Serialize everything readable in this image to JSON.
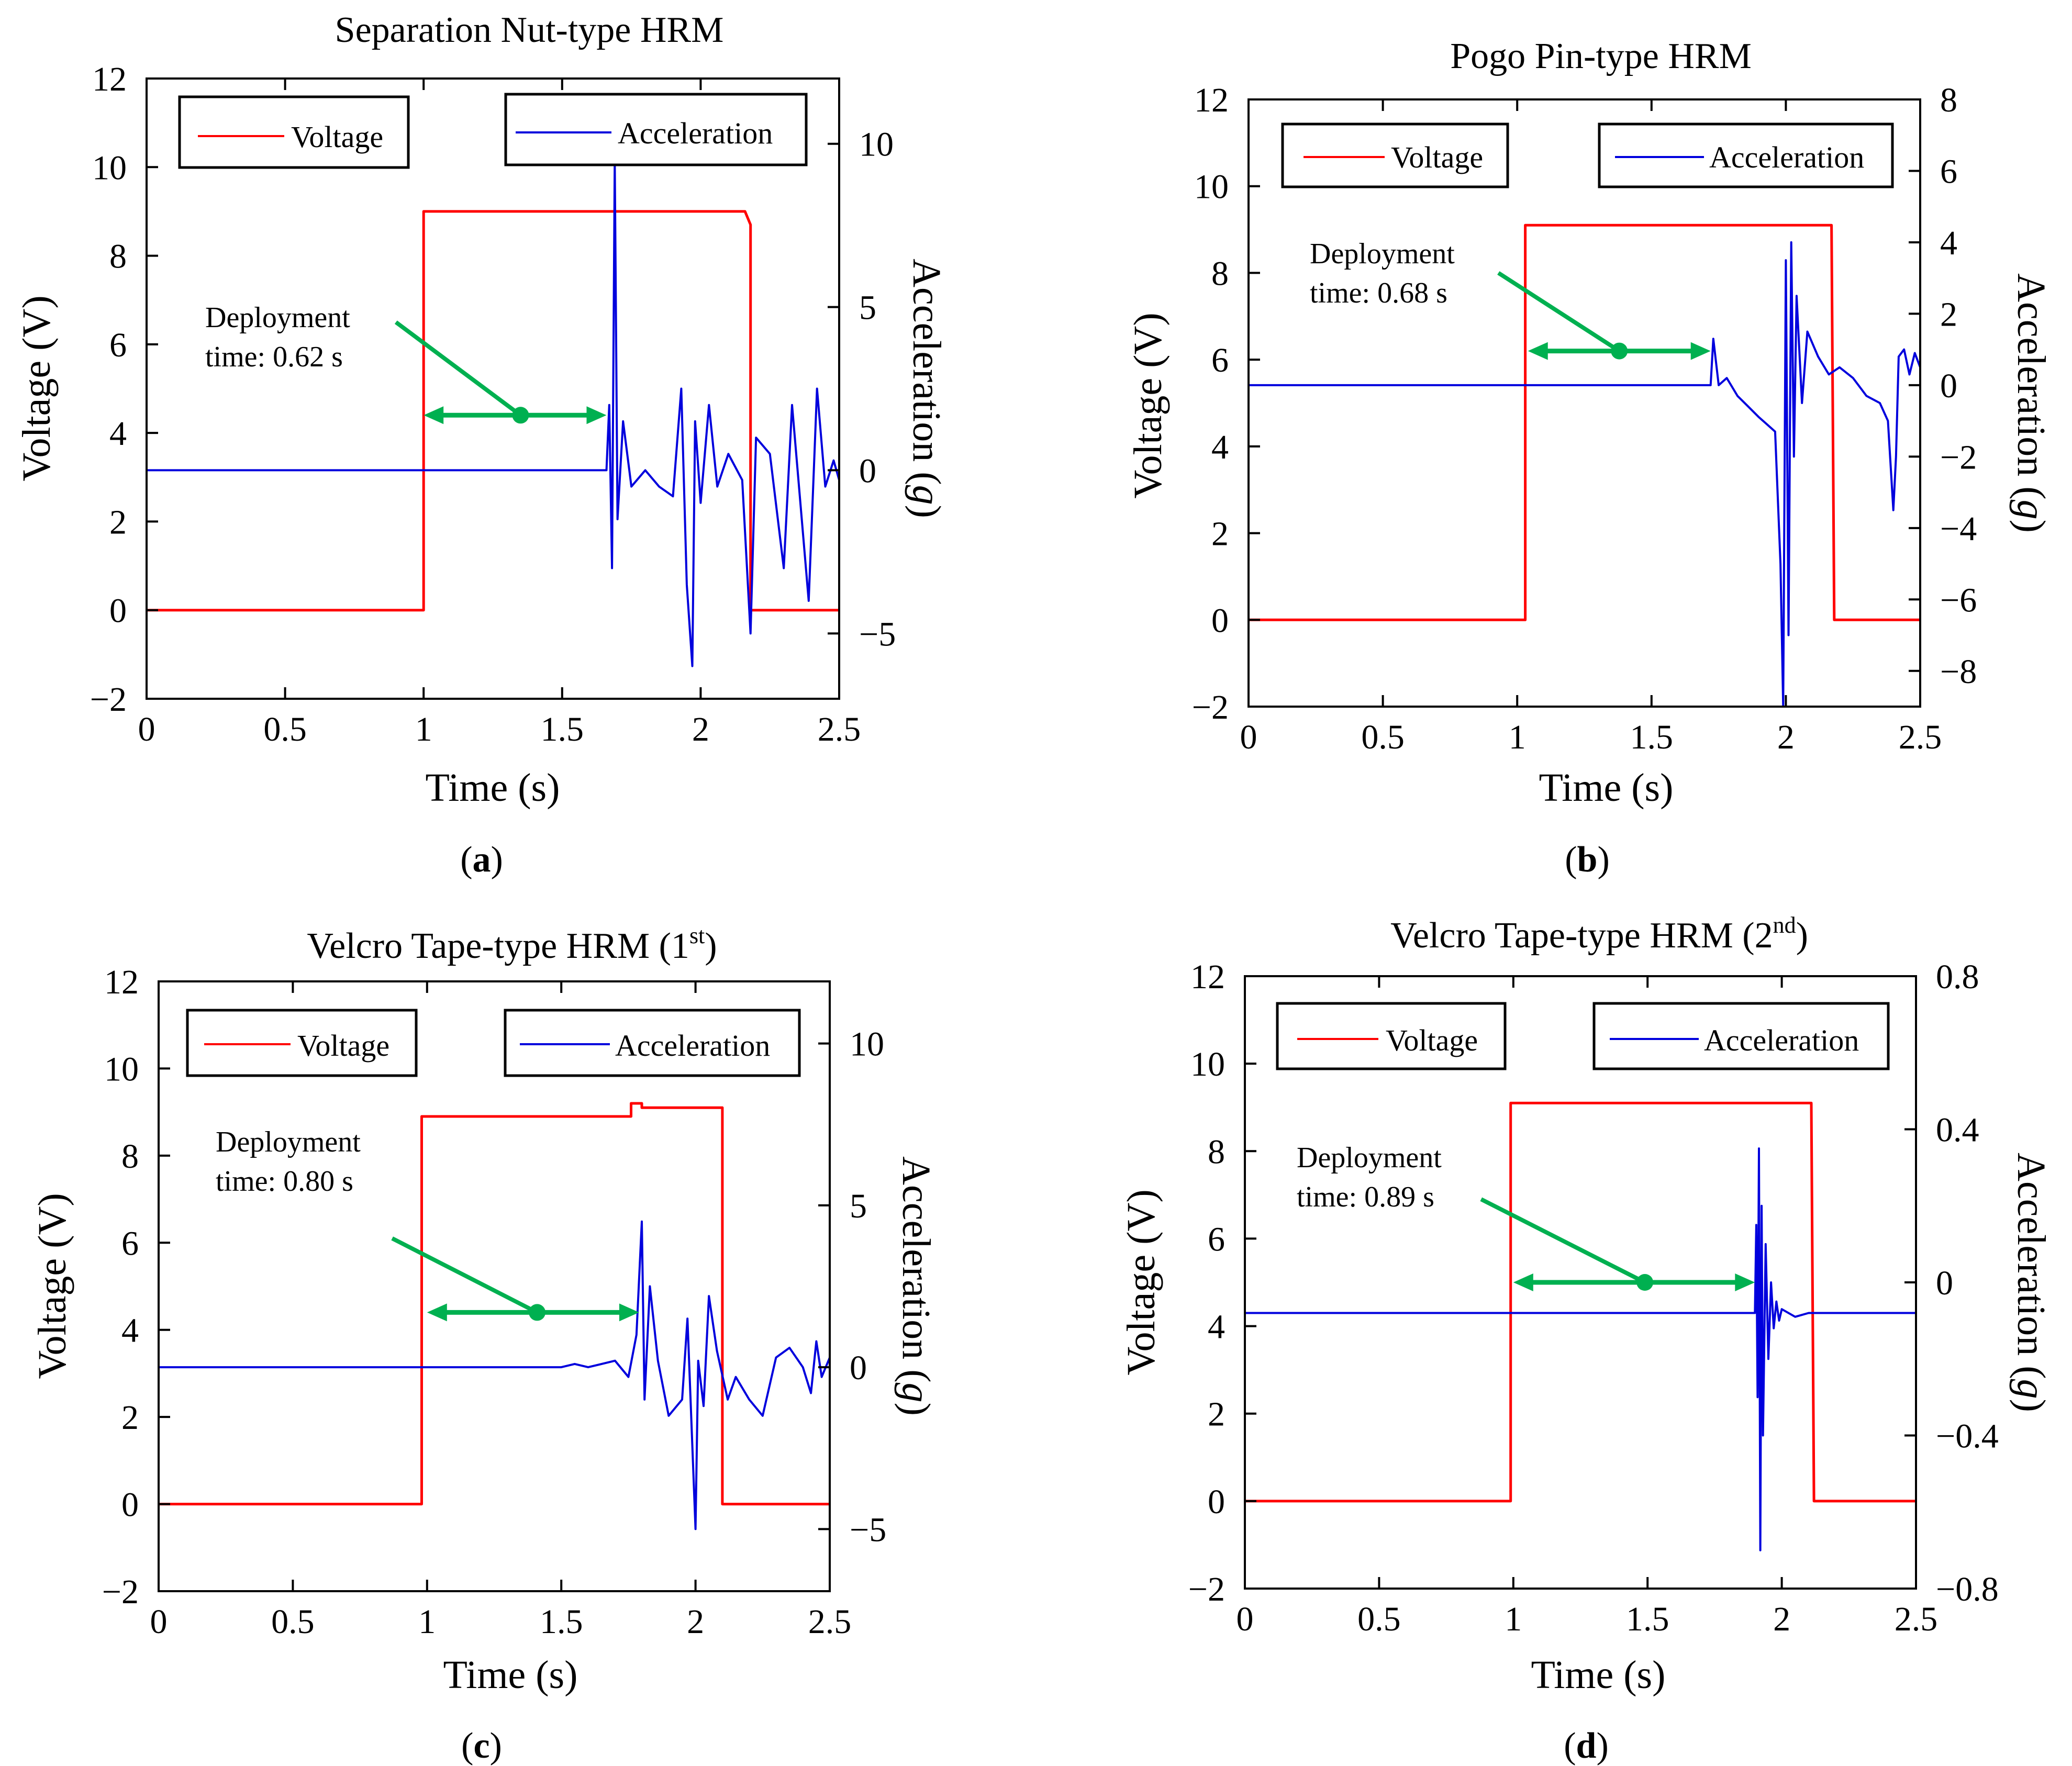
{
  "figure": {
    "colors": {
      "voltage": "#ff0000",
      "acceleration": "#0000dd",
      "annotation": "#00b050",
      "axis": "#000000"
    }
  },
  "chart_data": [
    {
      "type": "line",
      "panel_label": "a",
      "title": "Separation Nut-type HRM",
      "xlabel": "Time (s)",
      "ylabel_left": "Voltage (V)",
      "ylabel_right": "Acceleration (",
      "ylabel_right_unit": "g",
      "ylabel_right_close": ")",
      "xlim": [
        0,
        2.5
      ],
      "ylim_left": [
        -2,
        12
      ],
      "ylim_right": [
        -7,
        12
      ],
      "xticks": [
        "0",
        "0.5",
        "1",
        "1.5",
        "2",
        "2.5"
      ],
      "xtick_values": [
        0,
        0.5,
        1,
        1.5,
        2,
        2.5
      ],
      "yticks_left": [
        "−2",
        "0",
        "2",
        "4",
        "6",
        "8",
        "10",
        "12"
      ],
      "ytick_left_values": [
        -2,
        0,
        2,
        4,
        6,
        8,
        10,
        12
      ],
      "yticks_right": [
        "−5",
        "0",
        "5",
        "10"
      ],
      "ytick_right_values": [
        -5,
        0,
        5,
        10
      ],
      "legend": {
        "voltage": "Voltage",
        "acceleration": "Acceleration"
      },
      "annotation": {
        "line1": "Deployment",
        "line2": "time: 0.62 s",
        "x_start": 1.0,
        "x_end": 1.66,
        "y": 4.4,
        "pointer_from": [
          0.9,
          6.5
        ],
        "dot_x": 1.35
      },
      "series": [
        {
          "name": "Voltage",
          "axis": "left",
          "x": [
            0,
            1.0,
            1.0,
            2.16,
            2.18,
            2.18,
            2.5
          ],
          "values": [
            0,
            0,
            9.0,
            9.0,
            8.7,
            0,
            0
          ]
        },
        {
          "name": "Acceleration",
          "axis": "right",
          "x": [
            0,
            1.66,
            1.67,
            1.68,
            1.69,
            1.7,
            1.72,
            1.75,
            1.8,
            1.85,
            1.9,
            1.93,
            1.95,
            1.97,
            1.98,
            2.0,
            2.03,
            2.06,
            2.1,
            2.15,
            2.18,
            2.2,
            2.25,
            2.3,
            2.33,
            2.36,
            2.39,
            2.42,
            2.45,
            2.48,
            2.5
          ],
          "values": [
            0,
            0,
            2.0,
            -3.0,
            9.5,
            -1.5,
            1.5,
            -0.5,
            0,
            -0.5,
            -0.8,
            2.5,
            -3.5,
            -6.0,
            1.5,
            -1.0,
            2.0,
            -0.5,
            0.5,
            -0.3,
            -5.0,
            1.0,
            0.5,
            -3.0,
            2.0,
            -1.0,
            -4.0,
            2.5,
            -0.5,
            0.3,
            -0.3
          ]
        }
      ]
    },
    {
      "type": "line",
      "panel_label": "b",
      "title": "Pogo Pin-type HRM",
      "xlabel": "Time (s)",
      "ylabel_left": "Voltage (V)",
      "ylabel_right": "Acceleration (",
      "ylabel_right_unit": "g",
      "ylabel_right_close": ")",
      "xlim": [
        0,
        2.5
      ],
      "ylim_left": [
        -2,
        12
      ],
      "ylim_right": [
        -9,
        8
      ],
      "xticks": [
        "0",
        "0.5",
        "1",
        "1.5",
        "2",
        "2.5"
      ],
      "xtick_values": [
        0,
        0.5,
        1,
        1.5,
        2,
        2.5
      ],
      "yticks_left": [
        "−2",
        "0",
        "2",
        "4",
        "6",
        "8",
        "10",
        "12"
      ],
      "ytick_left_values": [
        -2,
        0,
        2,
        4,
        6,
        8,
        10,
        12
      ],
      "yticks_right": [
        "−8",
        "−6",
        "−4",
        "−2",
        "0",
        "2",
        "4",
        "6",
        "8"
      ],
      "ytick_right_values": [
        -8,
        -6,
        -4,
        -2,
        0,
        2,
        4,
        6,
        8
      ],
      "legend": {
        "voltage": "Voltage",
        "acceleration": "Acceleration"
      },
      "annotation": {
        "line1": "Deployment",
        "line2": "time: 0.68 s",
        "x_start": 1.04,
        "x_end": 1.72,
        "y": 6.2,
        "pointer_from": [
          0.93,
          8.0
        ],
        "dot_x": 1.38
      },
      "series": [
        {
          "name": "Voltage",
          "axis": "left",
          "x": [
            0,
            1.03,
            1.03,
            2.17,
            2.18,
            2.5
          ],
          "values": [
            0,
            0,
            9.1,
            9.1,
            0,
            0
          ]
        },
        {
          "name": "Acceleration",
          "axis": "right",
          "x": [
            0,
            1.72,
            1.73,
            1.75,
            1.78,
            1.82,
            1.86,
            1.9,
            1.93,
            1.96,
            1.98,
            1.99,
            2.0,
            2.01,
            2.02,
            2.03,
            2.04,
            2.06,
            2.08,
            2.12,
            2.16,
            2.2,
            2.25,
            2.3,
            2.35,
            2.38,
            2.4,
            2.41,
            2.42,
            2.44,
            2.46,
            2.48,
            2.5
          ],
          "values": [
            0,
            0,
            1.3,
            0,
            0.2,
            -0.3,
            -0.6,
            -0.9,
            -1.1,
            -1.3,
            -5.0,
            -9.0,
            3.5,
            -7.0,
            4.0,
            -2.0,
            2.5,
            -0.5,
            1.5,
            0.8,
            0.3,
            0.5,
            0.2,
            -0.3,
            -0.5,
            -1.0,
            -3.5,
            -2.0,
            0.8,
            1.0,
            0.3,
            0.9,
            0.5
          ]
        }
      ]
    },
    {
      "type": "line",
      "panel_label": "c",
      "title": "Velcro Tape-type HRM (1",
      "title_sup": "st",
      "title_close": ")",
      "xlabel": "Time (s)",
      "ylabel_left": "Voltage (V)",
      "ylabel_right": "Acceleration (",
      "ylabel_right_unit": "g",
      "ylabel_right_close": ")",
      "xlim": [
        0,
        2.5
      ],
      "ylim_left": [
        -2,
        12
      ],
      "ylim_right": [
        -7,
        12
      ],
      "xticks": [
        "0",
        "0.5",
        "1",
        "1.5",
        "2",
        "2.5"
      ],
      "xtick_values": [
        0,
        0.5,
        1,
        1.5,
        2,
        2.5
      ],
      "yticks_left": [
        "−2",
        "0",
        "2",
        "4",
        "6",
        "8",
        "10",
        "12"
      ],
      "ytick_left_values": [
        -2,
        0,
        2,
        4,
        6,
        8,
        10,
        12
      ],
      "yticks_right": [
        "−5",
        "0",
        "5",
        "10"
      ],
      "ytick_right_values": [
        -5,
        0,
        5,
        10
      ],
      "legend": {
        "voltage": "Voltage",
        "acceleration": "Acceleration"
      },
      "annotation": {
        "line1": "Deployment",
        "line2": "time: 0.80 s",
        "x_start": 1.0,
        "x_end": 1.79,
        "y": 4.4,
        "pointer_from": [
          0.87,
          6.1
        ],
        "dot_x": 1.41
      },
      "series": [
        {
          "name": "Voltage",
          "axis": "left",
          "x": [
            0,
            0.98,
            0.98,
            1.76,
            1.76,
            1.8,
            1.8,
            2.1,
            2.1,
            2.5
          ],
          "values": [
            0,
            0,
            8.9,
            8.9,
            9.2,
            9.2,
            9.1,
            9.1,
            0,
            0
          ]
        },
        {
          "name": "Acceleration",
          "axis": "right",
          "x": [
            0,
            1.5,
            1.55,
            1.6,
            1.7,
            1.75,
            1.78,
            1.8,
            1.81,
            1.83,
            1.86,
            1.9,
            1.95,
            1.97,
            2.0,
            2.01,
            2.03,
            2.05,
            2.08,
            2.12,
            2.15,
            2.2,
            2.25,
            2.3,
            2.35,
            2.4,
            2.43,
            2.45,
            2.47,
            2.5
          ],
          "values": [
            0,
            0,
            0.1,
            0,
            0.2,
            -0.3,
            1.0,
            4.5,
            -1.0,
            2.5,
            0.2,
            -1.5,
            -1.0,
            1.5,
            -5.0,
            0.2,
            -1.2,
            2.2,
            0.5,
            -1.0,
            -0.3,
            -1.0,
            -1.5,
            0.3,
            0.6,
            0,
            -0.8,
            0.8,
            -0.3,
            0.3
          ]
        }
      ]
    },
    {
      "type": "line",
      "panel_label": "d",
      "title": "Velcro Tape-type HRM (2",
      "title_sup": "nd",
      "title_close": ")",
      "xlabel": "Time (s)",
      "ylabel_left": "Voltage (V)",
      "ylabel_right": "Acceleration (",
      "ylabel_right_unit": "g",
      "ylabel_right_close": ")",
      "xlim": [
        0,
        2.5
      ],
      "ylim_left": [
        -2,
        12
      ],
      "ylim_right": [
        -0.8,
        0.8
      ],
      "xticks": [
        "0",
        "0.5",
        "1",
        "1.5",
        "2",
        "2.5"
      ],
      "xtick_values": [
        0,
        0.5,
        1,
        1.5,
        2,
        2.5
      ],
      "yticks_left": [
        "−2",
        "0",
        "2",
        "4",
        "6",
        "8",
        "10",
        "12"
      ],
      "ytick_left_values": [
        -2,
        0,
        2,
        4,
        6,
        8,
        10,
        12
      ],
      "yticks_right": [
        "−0.8",
        "−0.4",
        "0",
        "0.4",
        "0.8"
      ],
      "ytick_right_values": [
        -0.8,
        -0.4,
        0,
        0.4,
        0.8
      ],
      "legend": {
        "voltage": "Voltage",
        "acceleration": "Acceleration"
      },
      "annotation": {
        "line1": "Deployment",
        "line2": "time: 0.89 s",
        "x_start": 1.0,
        "x_end": 1.9,
        "y": 5.0,
        "pointer_from": [
          0.88,
          6.9
        ],
        "dot_x": 1.49
      },
      "series": [
        {
          "name": "Voltage",
          "axis": "left",
          "x": [
            0,
            0.99,
            0.99,
            2.11,
            2.12,
            2.5
          ],
          "values": [
            0,
            0,
            9.1,
            9.1,
            0,
            0
          ]
        },
        {
          "name": "Acceleration",
          "axis": "right",
          "x": [
            0,
            1.9,
            1.905,
            1.91,
            1.915,
            1.92,
            1.925,
            1.93,
            1.94,
            1.95,
            1.96,
            1.97,
            1.98,
            1.99,
            2.0,
            2.05,
            2.1,
            2.5
          ],
          "values": [
            -0.08,
            -0.08,
            0.15,
            -0.3,
            0.35,
            -0.7,
            0.2,
            -0.4,
            0.1,
            -0.2,
            0.0,
            -0.12,
            -0.05,
            -0.1,
            -0.07,
            -0.09,
            -0.08,
            -0.08
          ]
        }
      ]
    }
  ]
}
